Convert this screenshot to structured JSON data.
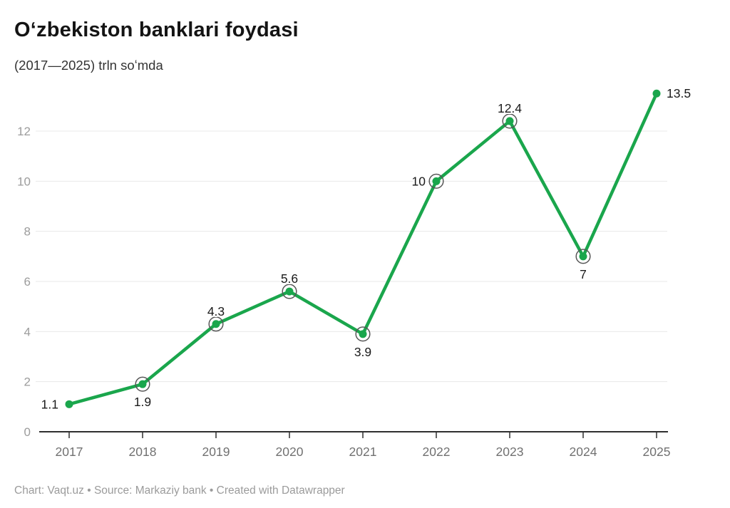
{
  "header": {
    "title": "Oʻzbekiston banklari foydasi",
    "subtitle": "(2017—2025) trln soʻmda"
  },
  "footer": {
    "text": "Chart: Vaqt.uz  • Source: Markaziy bank • Created with Datawrapper"
  },
  "chart_data": {
    "type": "line",
    "title": "Oʻzbekiston banklari foydasi",
    "subtitle": "(2017—2025) trln soʻmda",
    "x": [
      "2017",
      "2018",
      "2019",
      "2020",
      "2021",
      "2022",
      "2023",
      "2024",
      "2025"
    ],
    "values": [
      1.1,
      1.9,
      4.3,
      5.6,
      3.9,
      10,
      12.4,
      7,
      13.5
    ],
    "value_labels": [
      "1.1",
      "1.9",
      "4.3",
      "5.6",
      "3.9",
      "10",
      "12.4",
      "7",
      "13.5"
    ],
    "label_placement": [
      "left",
      "below",
      "above",
      "above",
      "below",
      "left",
      "above",
      "below",
      "right"
    ],
    "ring": [
      false,
      true,
      true,
      true,
      true,
      true,
      true,
      true,
      false
    ],
    "xlabel": "",
    "ylabel": "",
    "y_ticks": [
      0,
      2,
      4,
      6,
      8,
      10,
      12
    ],
    "ylim": [
      0,
      13.8
    ],
    "grid": "horizontal",
    "legend": "none",
    "line_color": "#1aa64c",
    "point_color": "#1aa64c",
    "ring_color": "#565656",
    "grid_color": "#e8e8e8",
    "axis_color": "#2f2f2f",
    "y_tick_label_color": "#9c9c9c",
    "x_tick_label_color": "#717171",
    "value_label_color": "#1a1a1a"
  }
}
